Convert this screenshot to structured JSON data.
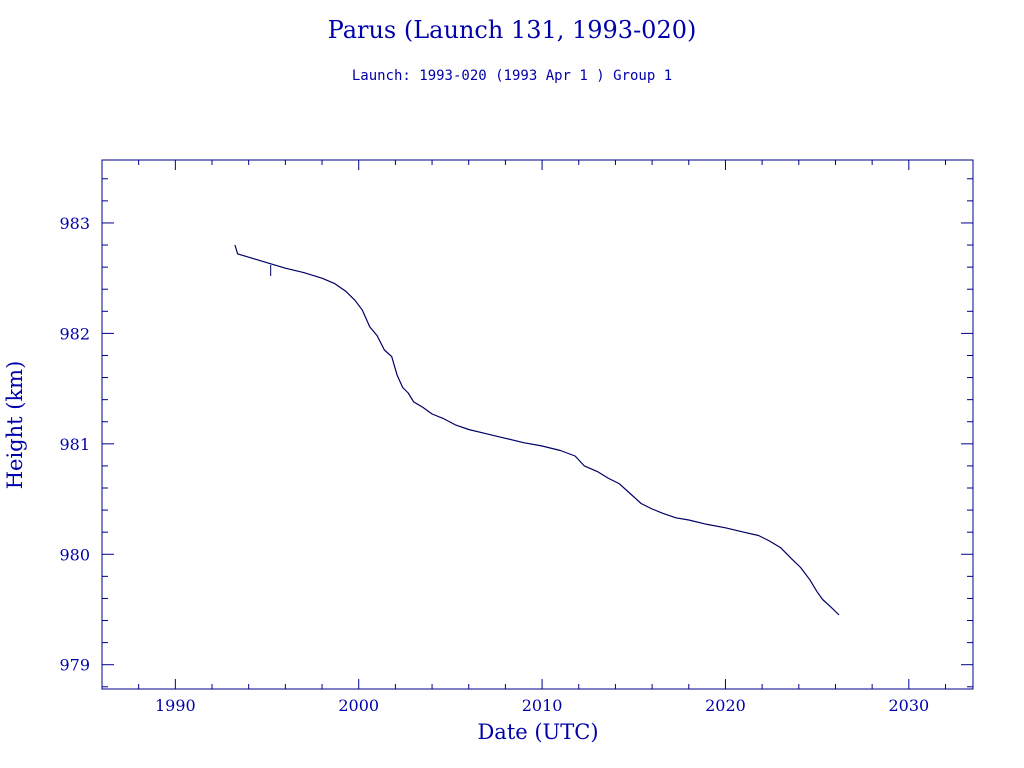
{
  "colors": {
    "text": "#0000aa",
    "frame": "#00008b",
    "series": "#000066",
    "background": "#ffffff"
  },
  "chart_data": {
    "type": "line",
    "title": "Parus (Launch 131, 1993-020)",
    "subtitle": "Launch: 1993-020  (1993 Apr  1 )  Group 1",
    "xlabel": "Date (UTC)",
    "ylabel": "Height (km)",
    "xlim": [
      1986,
      2033.5
    ],
    "ylim": [
      978.78,
      983.57
    ],
    "xticks": [
      1990,
      2000,
      2010,
      2020,
      2030
    ],
    "yticks": [
      979,
      980,
      981,
      982,
      983
    ],
    "grid": false,
    "series": [
      {
        "x": [
          1993.25,
          1993.4,
          1994.0,
          1995.0,
          1996.0,
          1997.0,
          1998.0,
          1998.7,
          1999.3,
          1999.8,
          2000.2,
          2000.6,
          2001.0,
          2001.4,
          2001.8,
          2002.1,
          2002.4,
          2002.7,
          2003.0,
          2003.5,
          2004.0,
          2004.6,
          2005.3,
          2006.0,
          2007.0,
          2008.0,
          2009.0,
          2010.0,
          2011.0,
          2011.8,
          2012.3,
          2013.0,
          2013.6,
          2014.2,
          2014.8,
          2015.4,
          2016.0,
          2016.6,
          2017.3,
          2018.0,
          2019.0,
          2020.0,
          2021.0,
          2021.8,
          2022.4,
          2023.0,
          2023.6,
          2024.1,
          2024.6,
          2025.0,
          2025.3,
          2025.7,
          2026.2
        ],
        "y": [
          982.8,
          982.72,
          982.69,
          982.64,
          982.59,
          982.55,
          982.5,
          982.45,
          982.38,
          982.3,
          982.21,
          982.06,
          981.98,
          981.85,
          981.79,
          981.62,
          981.51,
          981.46,
          981.38,
          981.33,
          981.27,
          981.23,
          981.17,
          981.13,
          981.09,
          981.05,
          981.01,
          980.98,
          980.94,
          980.89,
          980.8,
          980.75,
          980.69,
          980.64,
          980.55,
          980.46,
          980.41,
          980.37,
          980.33,
          980.31,
          980.27,
          980.24,
          980.2,
          980.17,
          980.12,
          980.06,
          979.96,
          979.88,
          979.77,
          979.66,
          979.59,
          979.53,
          979.45
        ]
      }
    ],
    "annotations": [
      {
        "x": 1995.2,
        "y_top": 982.62,
        "y_bottom": 982.52
      }
    ]
  }
}
